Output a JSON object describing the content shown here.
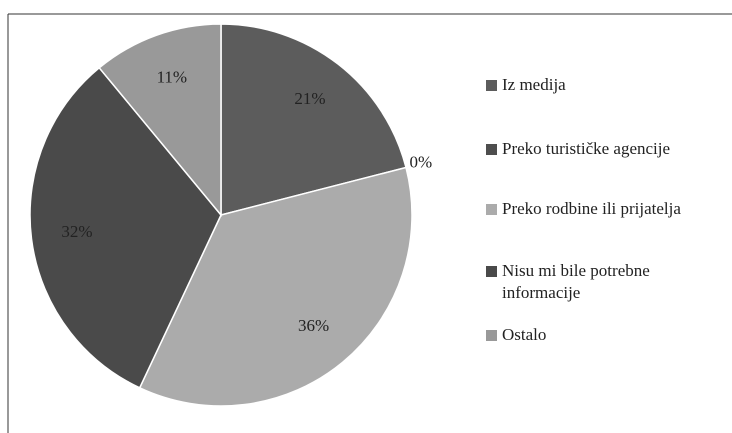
{
  "chart_data": {
    "type": "pie",
    "categories": [
      "Iz medija",
      "Preko turističke agencije",
      "Preko rodbine ili prijatelja",
      "Nisu mi bile potrebne informacije",
      "Ostalo"
    ],
    "values": [
      21,
      0,
      36,
      32,
      11
    ],
    "value_labels": [
      "21%",
      "0%",
      "36%",
      "32%",
      "11%"
    ],
    "colors": [
      "#5c5c5c",
      "#4e4e4e",
      "#ababab",
      "#4a4a4a",
      "#999999"
    ],
    "legend": "right"
  }
}
